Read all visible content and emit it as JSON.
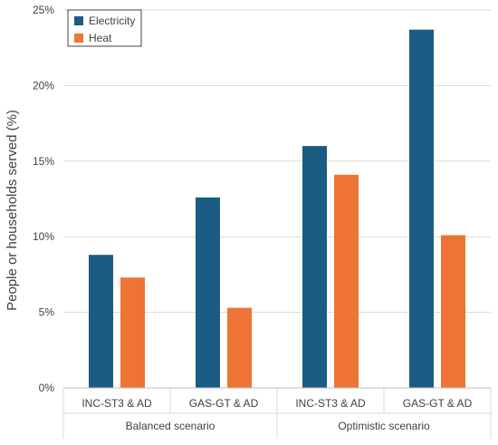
{
  "chart_data": {
    "type": "bar",
    "ylabel": "People or households served (%)",
    "ylim": [
      0,
      25
    ],
    "yticks": [
      0,
      5,
      10,
      15,
      20,
      25
    ],
    "ytick_labels": [
      "0%",
      "5%",
      "10%",
      "15%",
      "20%",
      "25%"
    ],
    "categories": [
      "INC-ST3 & AD",
      "GAS-GT & AD",
      "INC-ST3 & AD",
      "GAS-GT & AD"
    ],
    "groups": [
      {
        "label": "Balanced scenario",
        "categories": [
          0,
          1
        ]
      },
      {
        "label": "Optimistic scenario",
        "categories": [
          2,
          3
        ]
      }
    ],
    "series": [
      {
        "name": "Electricity",
        "color": "#1b5c84",
        "values": [
          8.8,
          12.6,
          16.0,
          23.7
        ]
      },
      {
        "name": "Heat",
        "color": "#ed7434",
        "values": [
          7.3,
          5.3,
          14.1,
          10.1
        ]
      }
    ],
    "grid": "horizontal",
    "legend_position": "top-left"
  }
}
